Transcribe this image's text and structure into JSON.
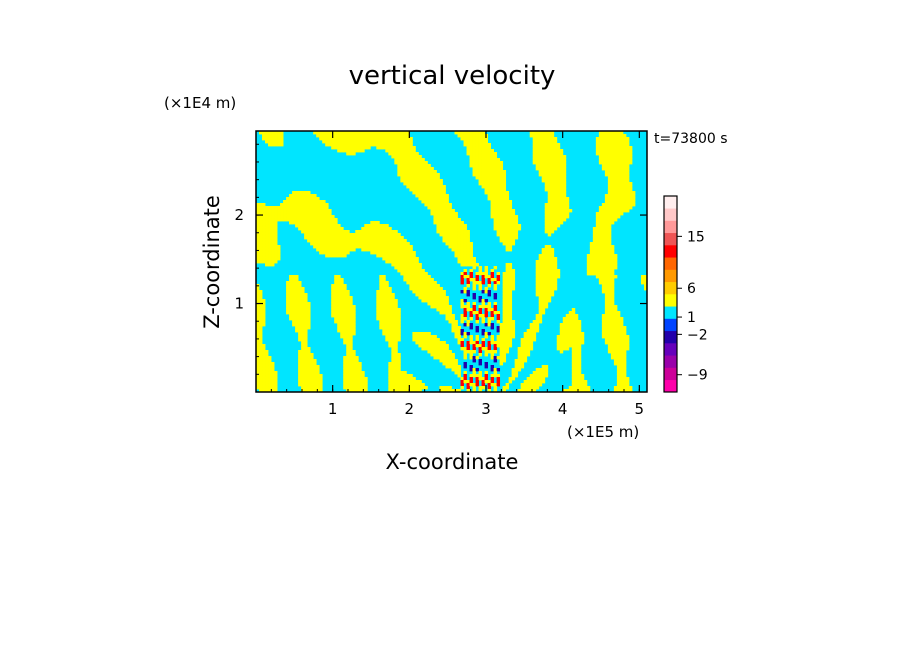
{
  "chart_data": {
    "type": "heatmap",
    "title": "vertical velocity",
    "xlabel": "X-coordinate",
    "ylabel": "Z-coordinate",
    "x_unit": "(×1E5 m)",
    "y_unit": "(×1E4 m)",
    "time_label": "t=73800 s",
    "xlim": [
      0,
      5.1
    ],
    "ylim": [
      0,
      2.95
    ],
    "x_ticks": [
      "1",
      "2",
      "3",
      "4",
      "5"
    ],
    "y_ticks": [
      "1",
      "2"
    ],
    "colorbar": {
      "levels": [
        {
          "color": "#ff00aa"
        },
        {
          "color": "#cc0099"
        },
        {
          "color": "#9900aa"
        },
        {
          "color": "#6600bb"
        },
        {
          "color": "#2200aa"
        },
        {
          "color": "#0044ff"
        },
        {
          "color": "#00e5ff"
        },
        {
          "color": "#ffff00"
        },
        {
          "color": "#ffcc00"
        },
        {
          "color": "#ff9900"
        },
        {
          "color": "#ff6600"
        },
        {
          "color": "#ff0000"
        },
        {
          "color": "#ee5555"
        },
        {
          "color": "#ff9999"
        },
        {
          "color": "#ffc8c8"
        },
        {
          "color": "#ffeeee"
        }
      ],
      "tick_labels": [
        {
          "label": "15",
          "value": 15
        },
        {
          "label": "6",
          "value": 6
        },
        {
          "label": "1",
          "value": 1
        },
        {
          "label": "−2",
          "value": -2
        },
        {
          "label": "−9",
          "value": -9
        }
      ]
    },
    "colors": {
      "background_field": "#00e5ff",
      "positive_field": "#ffff00",
      "strong_positive": "#ff0000",
      "strong_negative": "#2200aa"
    }
  }
}
